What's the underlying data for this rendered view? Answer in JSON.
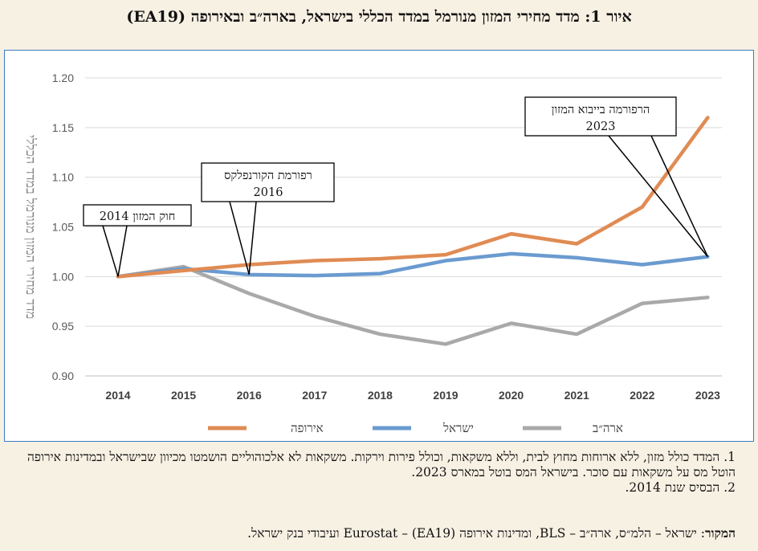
{
  "title": "איור 1: מדד מחירי המזון מנורמל במדד הכללי בישראל, בארה״ב ובאירופה (EA19)",
  "chart_data": {
    "type": "line",
    "categories": [
      "2014",
      "2015",
      "2016",
      "2017",
      "2018",
      "2019",
      "2020",
      "2021",
      "2022",
      "2023"
    ],
    "ylabel": "מדד מחירי המזון מנורמל במדד הכללי",
    "ylim": [
      0.9,
      1.2
    ],
    "yticks": [
      "0.90",
      "0.95",
      "1.00",
      "1.05",
      "1.10",
      "1.15",
      "1.20"
    ],
    "grid": true,
    "series": [
      {
        "name": "אירופה",
        "color": "#e08b54",
        "values": [
          1.0,
          1.006,
          1.012,
          1.016,
          1.018,
          1.022,
          1.043,
          1.033,
          1.07,
          1.16
        ]
      },
      {
        "name": "ישראל",
        "color": "#6a9bd0",
        "values": [
          1.0,
          1.008,
          1.002,
          1.001,
          1.003,
          1.016,
          1.023,
          1.019,
          1.012,
          1.02
        ]
      },
      {
        "name": "ארה״ב",
        "color": "#a9a9a9",
        "values": [
          1.0,
          1.01,
          0.983,
          0.96,
          0.942,
          0.932,
          0.953,
          0.942,
          0.973,
          0.979
        ]
      }
    ],
    "annotations": [
      {
        "line1": "חוק המזון 2014",
        "line2": "",
        "x_index": 0
      },
      {
        "line1": "רפורמת הקורנפלקס",
        "line2": "2016",
        "x_index": 2
      },
      {
        "line1": "הרפורמה בייבוא המזון",
        "line2": "2023",
        "x_index": 9
      }
    ]
  },
  "notes": {
    "note1": "1. המדד כולל מזון, ללא ארוחות מחוץ לבית, וללא משקאות, וכולל פירות וירקות. משקאות לא אלכוהוליים הושמטו מכיוון שבישראל ובמדינות אירופה הוטל מס על משקאות עם סוכר. בישראל המס בוטל במארס 2023.",
    "note2": "2. הבסיס שנת 2014."
  },
  "source": {
    "label": "המקור",
    "text": ": ישראל – הלמ״ס, ארה״ב – BLS, ומדינות אירופה (EA19) – Eurostat ועיבודי בנק ישראל."
  }
}
